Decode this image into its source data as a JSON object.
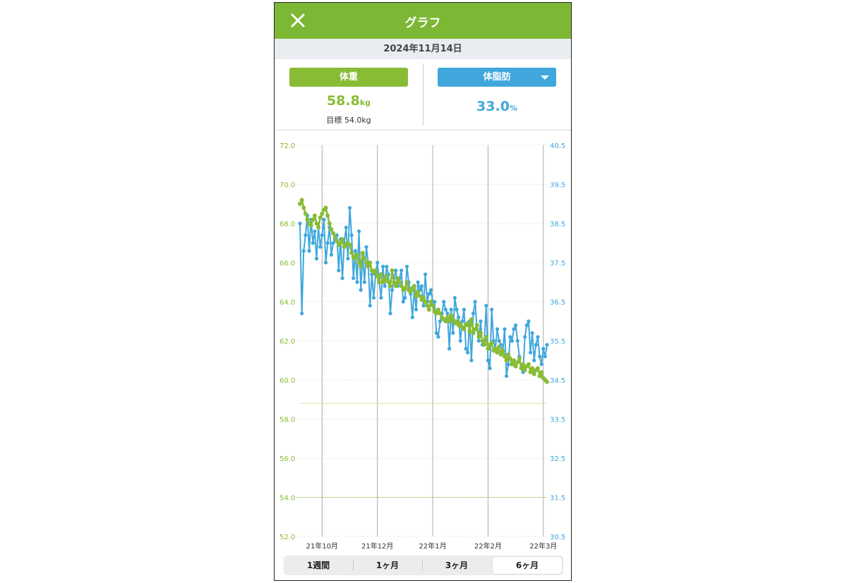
{
  "header": {
    "title": "グラフ"
  },
  "date": "2024年11月14日",
  "weight": {
    "label": "体重",
    "value": "58.8",
    "unit": "kg",
    "goal": "目標 54.0kg"
  },
  "bodyfat": {
    "label": "体脂肪",
    "value": "33.0",
    "unit": "%"
  },
  "tabs": [
    {
      "label": "1週間",
      "active": false
    },
    {
      "label": "1ヶ月",
      "active": false
    },
    {
      "label": "3ヶ月",
      "active": false
    },
    {
      "label": "6ヶ月",
      "active": true
    }
  ],
  "colors": {
    "accent_green": "#88bc34",
    "accent_blue": "#3fa7dc",
    "header_green": "#7cb833"
  },
  "icons": {
    "close": "close-icon",
    "dropdown": "chevron-down-icon"
  },
  "chart_data": {
    "type": "line",
    "x_labels": [
      "21年10月",
      "21年12月",
      "22年1月",
      "22年2月",
      "22年3月"
    ],
    "x_label_index": [
      12,
      42,
      72,
      102,
      132
    ],
    "y_left": {
      "ticks": [
        "72.0",
        "70.0",
        "68.0",
        "66.0",
        "64.0",
        "62.0",
        "60.0",
        "58.0",
        "56.0",
        "54.0",
        "52.0"
      ],
      "range": [
        52.0,
        72.0
      ]
    },
    "y_right": {
      "ticks": [
        "40.5",
        "39.5",
        "38.5",
        "37.5",
        "36.5",
        "35.5",
        "34.5",
        "33.5",
        "32.5",
        "31.5",
        "30.5"
      ],
      "range": [
        30.5,
        40.5
      ]
    },
    "goal_weight": 54.0,
    "current_weight": 58.8,
    "series": [
      {
        "name": "体重",
        "axis": "left",
        "values": [
          69.0,
          69.2,
          68.8,
          68.5,
          68.2,
          68.0,
          67.9,
          68.2,
          68.4,
          68.0,
          67.8,
          68.3,
          68.5,
          68.7,
          68.8,
          68.4,
          68.0,
          67.7,
          67.5,
          67.3,
          67.1,
          66.9,
          67.0,
          67.2,
          66.8,
          66.9,
          67.0,
          66.9,
          66.5,
          66.3,
          66.2,
          66.4,
          66.0,
          65.8,
          66.5,
          66.2,
          66.0,
          65.8,
          66.0,
          65.6,
          65.5,
          65.6,
          65.3,
          65.0,
          65.4,
          65.0,
          65.1,
          65.3,
          65.0,
          64.8,
          65.6,
          65.0,
          64.8,
          65.2,
          65.0,
          64.8,
          64.6,
          64.7,
          65.0,
          64.6,
          64.5,
          64.7,
          64.8,
          64.3,
          64.5,
          64.3,
          64.1,
          64.2,
          64.0,
          63.8,
          63.6,
          64.0,
          63.8,
          63.5,
          63.4,
          63.6,
          63.4,
          63.2,
          63.1,
          63.0,
          63.2,
          63.0,
          63.3,
          63.1,
          62.9,
          63.0,
          62.8,
          62.9,
          62.7,
          62.6,
          62.8,
          62.9,
          62.5,
          63.1,
          62.4,
          62.6,
          62.8,
          62.2,
          62.4,
          62.0,
          61.8,
          62.2,
          61.6,
          61.8,
          61.9,
          61.5,
          61.6,
          61.4,
          61.7,
          61.3,
          61.5,
          61.2,
          61.0,
          61.3,
          61.1,
          60.8,
          61.0,
          60.7,
          60.9,
          61.1,
          60.6,
          60.8,
          60.5,
          60.7,
          60.8,
          60.4,
          60.6,
          60.3,
          60.5,
          60.6,
          60.2,
          60.4,
          60.1,
          60.0,
          59.9
        ]
      },
      {
        "name": "体脂肪",
        "axis": "right",
        "values": [
          38.5,
          36.2,
          37.8,
          38.2,
          38.7,
          37.8,
          38.6,
          38.0,
          38.3,
          37.6,
          38.4,
          37.9,
          38.2,
          38.6,
          37.5,
          38.0,
          38.4,
          37.7,
          38.0,
          38.1,
          38.2,
          37.3,
          38.1,
          37.1,
          38.0,
          38.4,
          37.6,
          38.9,
          38.2,
          37.1,
          37.8,
          37.0,
          38.3,
          36.8,
          37.7,
          37.0,
          37.9,
          37.5,
          36.4,
          37.2,
          36.6,
          37.2,
          37.5,
          37.0,
          36.6,
          37.4,
          36.9,
          37.4,
          37.2,
          36.2,
          36.8,
          37.1,
          37.3,
          36.9,
          37.1,
          37.3,
          36.5,
          36.6,
          37.4,
          37.0,
          36.7,
          36.1,
          36.8,
          36.3,
          37.0,
          36.8,
          36.9,
          36.4,
          37.2,
          36.5,
          36.7,
          36.8,
          36.5,
          36.5,
          35.7,
          35.6,
          36.0,
          36.2,
          36.5,
          36.3,
          36.2,
          35.3,
          36.3,
          35.7,
          36.6,
          36.3,
          36.1,
          35.5,
          36.0,
          36.3,
          35.3,
          35.2,
          36.0,
          35.0,
          36.2,
          36.5,
          35.8,
          35.5,
          36.0,
          35.4,
          35.5,
          36.4,
          35.0,
          34.8,
          36.3,
          35.5,
          35.3,
          35.8,
          35.5,
          35.4,
          35.2,
          35.8,
          34.6,
          34.9,
          35.6,
          35.5,
          35.8,
          35.9,
          35.5,
          35.1,
          34.8,
          34.7,
          35.6,
          35.9,
          36.0,
          35.2,
          35.7,
          35.0,
          35.4,
          35.6,
          35.1,
          34.9,
          35.3,
          35.1,
          35.4
        ]
      }
    ]
  }
}
